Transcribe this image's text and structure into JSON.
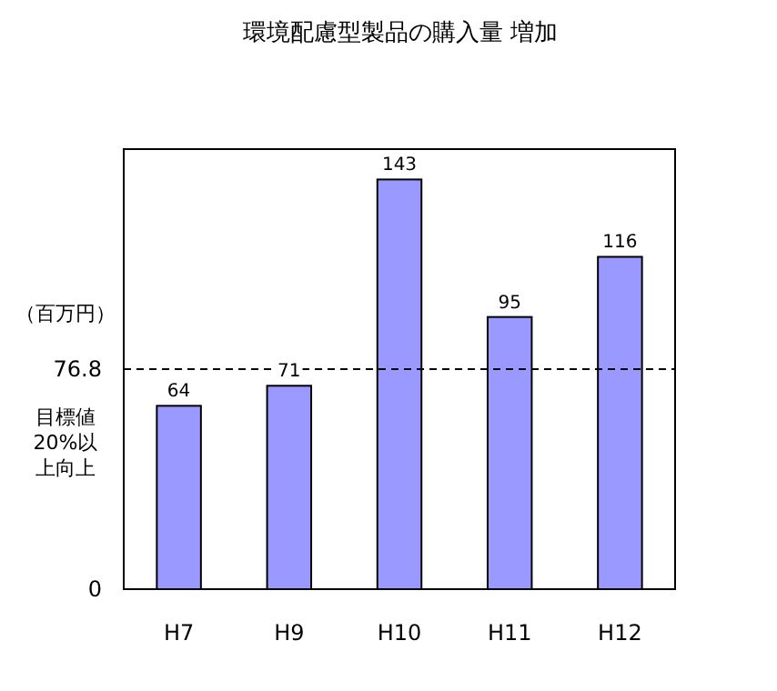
{
  "chart_data": {
    "type": "bar",
    "title": "環境配慮型製品の購入量 増加",
    "ylabel": "（百万円）",
    "categories": [
      "H7",
      "H9",
      "H10",
      "H11",
      "H12"
    ],
    "values": [
      64,
      71,
      143,
      95,
      116
    ],
    "color": "#9999ff",
    "ylim": [
      0,
      153.6
    ],
    "yticks": [
      0,
      76.8
    ],
    "ref_lines": [
      {
        "axis": "y",
        "value": 76.8,
        "label": "目標値20%以上向上",
        "line_style": "dashed",
        "color": "#000000"
      }
    ],
    "data_labels": true,
    "grid": false
  }
}
